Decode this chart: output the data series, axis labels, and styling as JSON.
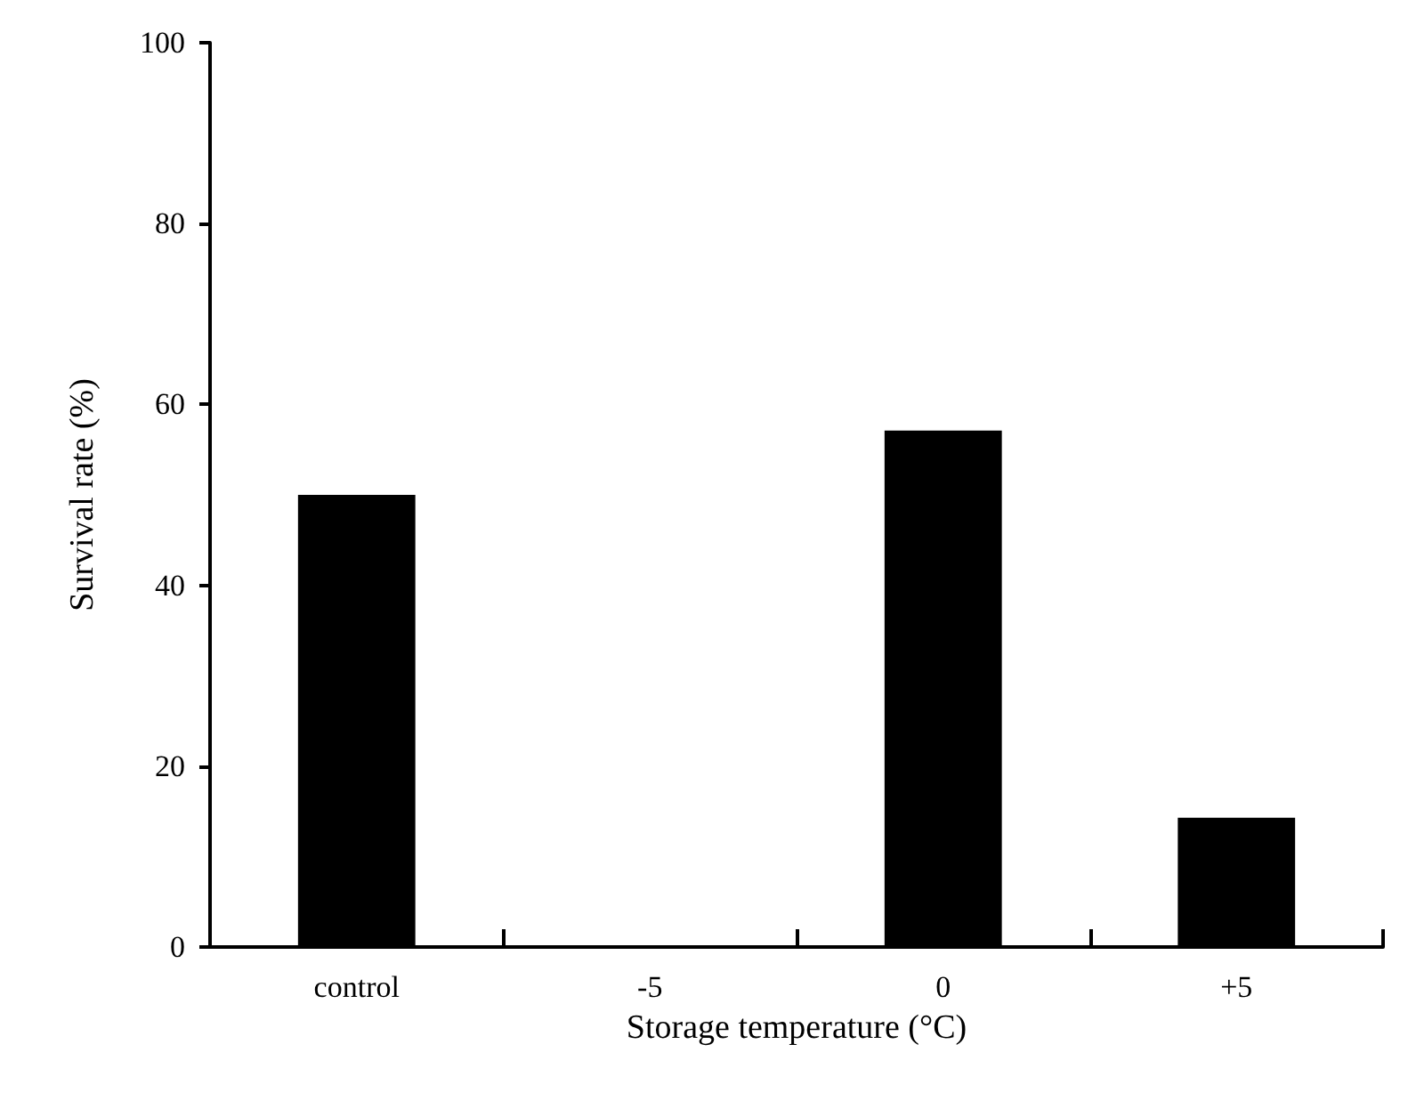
{
  "chart_data": {
    "type": "bar",
    "xlabel": "Storage temperature (°C)",
    "ylabel": "Survival rate (%)",
    "categories": [
      "control",
      "-5",
      "0",
      "+5"
    ],
    "values": [
      50,
      0,
      57.1,
      14.3
    ],
    "color": "#000000",
    "ylim": [
      0,
      100
    ],
    "yticks": [
      0,
      20,
      40,
      60,
      80,
      100
    ],
    "grid": false
  }
}
